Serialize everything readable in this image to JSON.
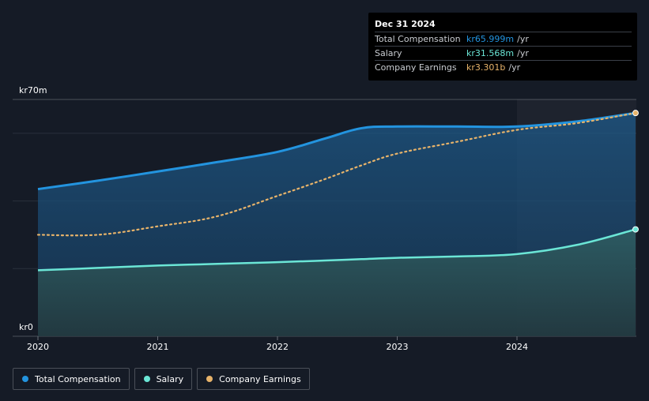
{
  "chart_data": {
    "type": "line",
    "x": [
      2020.0,
      2020.5,
      2021.0,
      2021.5,
      2022.0,
      2022.4,
      2022.7,
      2023.0,
      2023.5,
      2024.0,
      2024.5,
      2024.99
    ],
    "series": [
      {
        "name": "Total Compensation",
        "unit": "kr m/yr",
        "color": "#2394df",
        "values": [
          43.5,
          46.0,
          48.7,
          51.5,
          54.5,
          58.5,
          61.5,
          62.0,
          62.0,
          62.0,
          63.5,
          66.0
        ]
      },
      {
        "name": "Salary",
        "unit": "kr m/yr",
        "color": "#6be6d6",
        "values": [
          19.5,
          20.2,
          20.9,
          21.4,
          21.9,
          22.4,
          22.8,
          23.2,
          23.6,
          24.3,
          27.0,
          31.6
        ]
      },
      {
        "name": "Company Earnings",
        "unit": "kr b/yr",
        "color": "#e7b36a",
        "values_scaled_to_left_axis": [
          30.0,
          30.0,
          32.5,
          35.5,
          41.5,
          46.5,
          50.5,
          54.0,
          57.5,
          61.0,
          63.0,
          66.0
        ]
      }
    ],
    "xticks": [
      "2020",
      "2021",
      "2022",
      "2023",
      "2024"
    ],
    "xtick_values": [
      2020,
      2021,
      2022,
      2023,
      2024
    ],
    "ylim": [
      0,
      70
    ],
    "ylabels": {
      "top": "kr70m",
      "bottom": "kr0"
    },
    "gridlines": [
      0,
      20,
      40,
      60,
      70
    ],
    "highlight_from": 2024.0
  },
  "tooltip": {
    "date": "Dec 31 2024",
    "rows": [
      {
        "label": "Total Compensation",
        "value": "kr65.999m",
        "unit": "/yr",
        "color": "#2394df"
      },
      {
        "label": "Salary",
        "value": "kr31.568m",
        "unit": "/yr",
        "color": "#6be6d6"
      },
      {
        "label": "Company Earnings",
        "value": "kr3.301b",
        "unit": "/yr",
        "color": "#e7b36a"
      }
    ]
  },
  "legend": [
    {
      "label": "Total Compensation",
      "color": "#2394df"
    },
    {
      "label": "Salary",
      "color": "#6be6d6"
    },
    {
      "label": "Company Earnings",
      "color": "#e7b36a"
    }
  ]
}
